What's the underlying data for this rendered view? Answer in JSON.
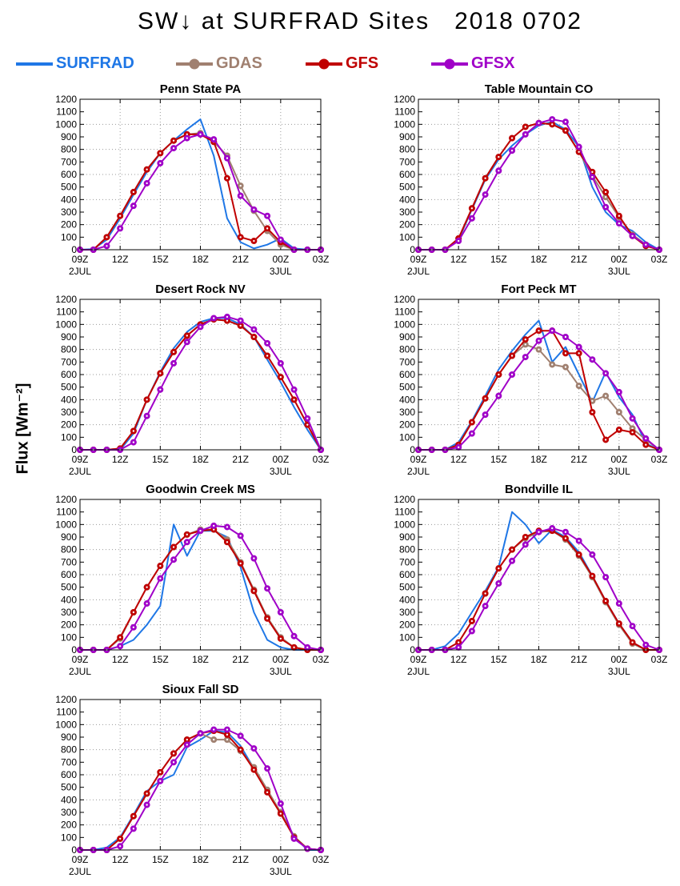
{
  "header": {
    "title": "SW↓ at SURFRAD Sites",
    "date": "2018 0702"
  },
  "y_axis_label": "Flux [Wm⁻²]",
  "legend": [
    {
      "name": "SURFRAD",
      "color": "#1f77e6",
      "marker": false
    },
    {
      "name": "GDAS",
      "color": "#a08070",
      "marker": true
    },
    {
      "name": "GFS",
      "color": "#c00000",
      "marker": true
    },
    {
      "name": "GFSX",
      "color": "#a000c8",
      "marker": true
    }
  ],
  "chart_data": [
    {
      "type": "line",
      "title": "Penn State PA",
      "x_ticks": [
        "09Z",
        "12Z",
        "15Z",
        "18Z",
        "21Z",
        "00Z",
        "03Z"
      ],
      "x_date_labels": {
        "09Z": "2JUL",
        "00Z": "3JUL"
      },
      "ylim": [
        0,
        1200
      ],
      "y_ticks": [
        0,
        100,
        200,
        300,
        400,
        500,
        600,
        700,
        800,
        900,
        1000,
        1100,
        1200
      ],
      "grid": true,
      "x_hours": [
        9,
        10,
        11,
        12,
        13,
        14,
        15,
        16,
        17,
        18,
        19,
        20,
        21,
        22,
        23,
        24,
        25,
        26,
        27
      ],
      "series": [
        {
          "name": "SURFRAD",
          "values": [
            0,
            5,
            80,
            250,
            440,
            620,
            770,
            870,
            960,
            1040,
            750,
            250,
            60,
            10,
            40,
            90,
            10,
            0,
            0
          ]
        },
        {
          "name": "GDAS",
          "values": [
            0,
            0,
            100,
            270,
            460,
            640,
            770,
            870,
            920,
            930,
            860,
            750,
            510,
            310,
            150,
            40,
            0,
            0,
            0
          ]
        },
        {
          "name": "GFS",
          "values": [
            0,
            0,
            100,
            270,
            460,
            640,
            770,
            870,
            920,
            920,
            860,
            570,
            100,
            70,
            170,
            60,
            0,
            0,
            0
          ]
        },
        {
          "name": "GFSX",
          "values": [
            0,
            0,
            30,
            170,
            350,
            530,
            690,
            810,
            890,
            920,
            880,
            730,
            430,
            320,
            270,
            80,
            0,
            0,
            0
          ]
        }
      ]
    },
    {
      "type": "line",
      "title": "Table Mountain CO",
      "x_ticks": [
        "09Z",
        "12Z",
        "15Z",
        "18Z",
        "21Z",
        "00Z",
        "03Z"
      ],
      "x_date_labels": {
        "09Z": "2JUL",
        "00Z": "3JUL"
      },
      "ylim": [
        0,
        1200
      ],
      "y_ticks": [
        0,
        100,
        200,
        300,
        400,
        500,
        600,
        700,
        800,
        900,
        1000,
        1100,
        1200
      ],
      "grid": true,
      "x_hours": [
        9,
        10,
        11,
        12,
        13,
        14,
        15,
        16,
        17,
        18,
        19,
        20,
        21,
        22,
        23,
        24,
        25,
        26,
        27
      ],
      "series": [
        {
          "name": "SURFRAD",
          "values": [
            0,
            0,
            0,
            80,
            320,
            560,
            720,
            830,
            920,
            990,
            1020,
            960,
            820,
            500,
            300,
            200,
            150,
            60,
            0
          ]
        },
        {
          "name": "GDAS",
          "values": [
            0,
            0,
            0,
            90,
            330,
            570,
            740,
            890,
            980,
            1010,
            1000,
            950,
            780,
            590,
            420,
            260,
            120,
            40,
            0
          ]
        },
        {
          "name": "GFS",
          "values": [
            0,
            0,
            0,
            90,
            330,
            570,
            740,
            890,
            980,
            1010,
            1000,
            950,
            780,
            620,
            460,
            270,
            110,
            30,
            0
          ]
        },
        {
          "name": "GFSX",
          "values": [
            0,
            0,
            0,
            70,
            250,
            440,
            630,
            790,
            920,
            1010,
            1040,
            1020,
            820,
            580,
            340,
            210,
            110,
            40,
            0
          ]
        }
      ]
    },
    {
      "type": "line",
      "title": "Desert Rock NV",
      "x_ticks": [
        "09Z",
        "12Z",
        "15Z",
        "18Z",
        "21Z",
        "00Z",
        "03Z"
      ],
      "x_date_labels": {
        "09Z": "2JUL",
        "00Z": "3JUL"
      },
      "ylim": [
        0,
        1200
      ],
      "y_ticks": [
        0,
        100,
        200,
        300,
        400,
        500,
        600,
        700,
        800,
        900,
        1000,
        1100,
        1200
      ],
      "grid": true,
      "x_hours": [
        9,
        10,
        11,
        12,
        13,
        14,
        15,
        16,
        17,
        18,
        19,
        20,
        21,
        22,
        23,
        24,
        25,
        26,
        27
      ],
      "series": [
        {
          "name": "SURFRAD",
          "values": [
            0,
            0,
            0,
            0,
            130,
            400,
            620,
            810,
            940,
            1020,
            1050,
            1050,
            1000,
            900,
            720,
            540,
            340,
            160,
            0
          ]
        },
        {
          "name": "GDAS",
          "values": [
            0,
            0,
            0,
            10,
            150,
            400,
            610,
            780,
            910,
            1000,
            1040,
            1030,
            990,
            900,
            750,
            580,
            400,
            200,
            0
          ]
        },
        {
          "name": "GFS",
          "values": [
            0,
            0,
            0,
            10,
            150,
            400,
            610,
            780,
            910,
            1000,
            1040,
            1030,
            990,
            900,
            750,
            580,
            400,
            200,
            0
          ]
        },
        {
          "name": "GFSX",
          "values": [
            0,
            0,
            0,
            0,
            60,
            270,
            480,
            690,
            860,
            980,
            1050,
            1060,
            1030,
            960,
            850,
            690,
            480,
            250,
            0
          ]
        }
      ]
    },
    {
      "type": "line",
      "title": "Fort Peck MT",
      "x_ticks": [
        "09Z",
        "12Z",
        "15Z",
        "18Z",
        "21Z",
        "00Z",
        "03Z"
      ],
      "x_date_labels": {
        "09Z": "2JUL",
        "00Z": "3JUL"
      },
      "ylim": [
        0,
        1200
      ],
      "y_ticks": [
        0,
        100,
        200,
        300,
        400,
        500,
        600,
        700,
        800,
        900,
        1000,
        1100,
        1200
      ],
      "grid": true,
      "x_hours": [
        9,
        10,
        11,
        12,
        13,
        14,
        15,
        16,
        17,
        18,
        19,
        20,
        21,
        22,
        23,
        24,
        25,
        26,
        27
      ],
      "series": [
        {
          "name": "SURFRAD",
          "values": [
            0,
            0,
            0,
            60,
            230,
            430,
            640,
            790,
            920,
            1030,
            700,
            820,
            600,
            380,
            620,
            420,
            280,
            50,
            0
          ]
        },
        {
          "name": "GDAS",
          "values": [
            0,
            0,
            0,
            40,
            220,
            410,
            600,
            750,
            840,
            800,
            680,
            660,
            510,
            390,
            430,
            300,
            170,
            80,
            0
          ]
        },
        {
          "name": "GFS",
          "values": [
            0,
            0,
            0,
            40,
            220,
            410,
            600,
            750,
            880,
            950,
            950,
            770,
            770,
            300,
            80,
            160,
            140,
            40,
            0
          ]
        },
        {
          "name": "GFSX",
          "values": [
            0,
            0,
            0,
            20,
            130,
            280,
            430,
            600,
            740,
            870,
            950,
            900,
            820,
            720,
            610,
            460,
            250,
            90,
            0
          ]
        }
      ]
    },
    {
      "type": "line",
      "title": "Goodwin Creek MS",
      "x_ticks": [
        "09Z",
        "12Z",
        "15Z",
        "18Z",
        "21Z",
        "00Z",
        "03Z"
      ],
      "x_date_labels": {
        "09Z": "2JUL",
        "00Z": "3JUL"
      },
      "ylim": [
        0,
        1200
      ],
      "y_ticks": [
        0,
        100,
        200,
        300,
        400,
        500,
        600,
        700,
        800,
        900,
        1000,
        1100,
        1200
      ],
      "grid": true,
      "x_hours": [
        9,
        10,
        11,
        12,
        13,
        14,
        15,
        16,
        17,
        18,
        19,
        20,
        21,
        22,
        23,
        24,
        25,
        26,
        27
      ],
      "series": [
        {
          "name": "SURFRAD",
          "values": [
            0,
            0,
            0,
            30,
            80,
            200,
            350,
            1000,
            750,
            950,
            950,
            900,
            660,
            300,
            80,
            20,
            0,
            0,
            0
          ]
        },
        {
          "name": "GDAS",
          "values": [
            0,
            0,
            0,
            90,
            300,
            500,
            670,
            820,
            920,
            960,
            960,
            880,
            700,
            480,
            260,
            100,
            20,
            0,
            0
          ]
        },
        {
          "name": "GFS",
          "values": [
            0,
            0,
            0,
            100,
            300,
            500,
            670,
            820,
            920,
            950,
            960,
            860,
            690,
            470,
            250,
            90,
            20,
            0,
            0
          ]
        },
        {
          "name": "GFSX",
          "values": [
            0,
            0,
            0,
            30,
            180,
            370,
            570,
            720,
            860,
            950,
            990,
            980,
            910,
            730,
            490,
            300,
            110,
            20,
            0
          ]
        }
      ]
    },
    {
      "type": "line",
      "title": "Bondville IL",
      "x_ticks": [
        "09Z",
        "12Z",
        "15Z",
        "18Z",
        "21Z",
        "00Z",
        "03Z"
      ],
      "x_date_labels": {
        "09Z": "2JUL",
        "00Z": "3JUL"
      },
      "ylim": [
        0,
        1200
      ],
      "y_ticks": [
        0,
        100,
        200,
        300,
        400,
        500,
        600,
        700,
        800,
        900,
        1000,
        1100,
        1200
      ],
      "grid": true,
      "x_hours": [
        9,
        10,
        11,
        12,
        13,
        14,
        15,
        16,
        17,
        18,
        19,
        20,
        21,
        22,
        23,
        24,
        25,
        26,
        27
      ],
      "series": [
        {
          "name": "SURFRAD",
          "values": [
            0,
            0,
            30,
            130,
            300,
            470,
            660,
            1100,
            1000,
            850,
            960,
            900,
            780,
            590,
            390,
            210,
            60,
            0,
            0
          ]
        },
        {
          "name": "GDAS",
          "values": [
            0,
            0,
            0,
            60,
            230,
            450,
            650,
            800,
            890,
            940,
            950,
            880,
            750,
            580,
            380,
            200,
            50,
            0,
            0
          ]
        },
        {
          "name": "GFS",
          "values": [
            0,
            0,
            0,
            60,
            230,
            450,
            650,
            800,
            900,
            950,
            950,
            890,
            760,
            590,
            390,
            210,
            60,
            0,
            0
          ]
        },
        {
          "name": "GFSX",
          "values": [
            0,
            0,
            0,
            20,
            150,
            350,
            530,
            710,
            840,
            940,
            970,
            940,
            870,
            760,
            580,
            370,
            190,
            40,
            0
          ]
        }
      ]
    },
    {
      "type": "line",
      "title": "Sioux Fall SD",
      "x_ticks": [
        "09Z",
        "12Z",
        "15Z",
        "18Z",
        "21Z",
        "00Z",
        "03Z"
      ],
      "x_date_labels": {
        "09Z": "2JUL",
        "00Z": "3JUL"
      },
      "ylim": [
        0,
        1200
      ],
      "y_ticks": [
        0,
        100,
        200,
        300,
        400,
        500,
        600,
        700,
        800,
        900,
        1000,
        1100,
        1200
      ],
      "grid": true,
      "x_hours": [
        9,
        10,
        11,
        12,
        13,
        14,
        15,
        16,
        17,
        18,
        19,
        20,
        21,
        22,
        23,
        24,
        25,
        26,
        27
      ],
      "series": [
        {
          "name": "SURFRAD",
          "values": [
            0,
            0,
            20,
            100,
            280,
            470,
            550,
            600,
            820,
            880,
            950,
            940,
            830,
            650,
            470,
            300,
            110,
            0,
            0
          ]
        },
        {
          "name": "GDAS",
          "values": [
            0,
            0,
            0,
            90,
            270,
            450,
            620,
            770,
            880,
            930,
            880,
            880,
            790,
            660,
            480,
            300,
            110,
            10,
            0
          ]
        },
        {
          "name": "GFS",
          "values": [
            0,
            0,
            0,
            90,
            270,
            450,
            620,
            770,
            880,
            930,
            950,
            920,
            800,
            640,
            460,
            290,
            100,
            10,
            0
          ]
        },
        {
          "name": "GFSX",
          "values": [
            0,
            0,
            0,
            30,
            170,
            360,
            550,
            700,
            840,
            930,
            960,
            960,
            910,
            810,
            650,
            370,
            90,
            10,
            0
          ]
        }
      ]
    }
  ]
}
